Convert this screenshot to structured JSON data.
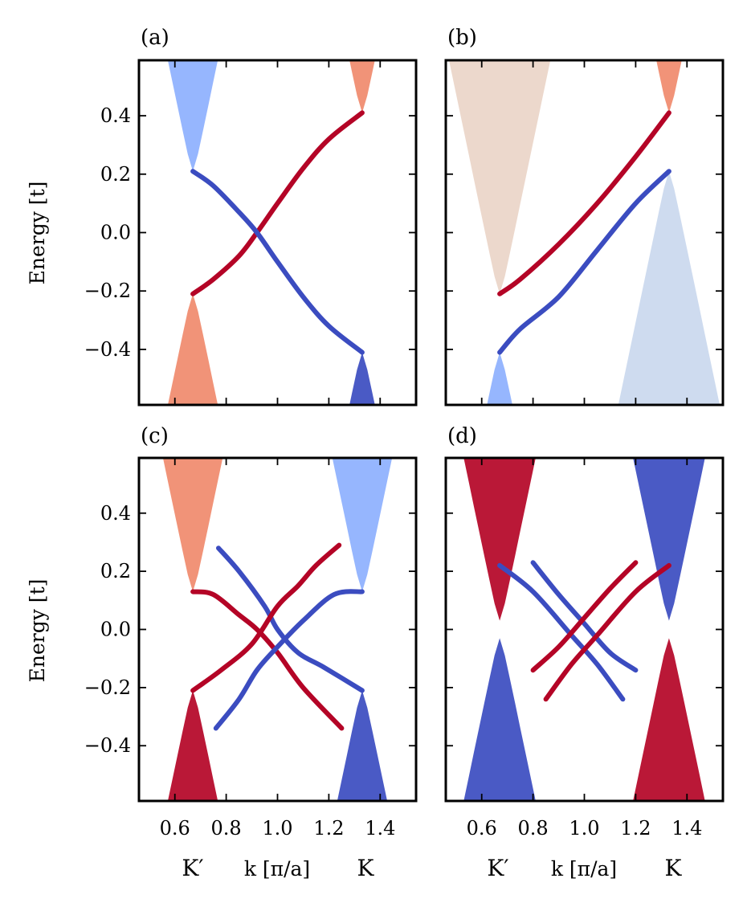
{
  "figure": {
    "ylabel_left": "Energy [t]",
    "xlabel": "k [π/a]",
    "valley_left": "K′",
    "valley_right": "K"
  },
  "colors": {
    "red": "#b40426",
    "blue": "#3b4cc0",
    "light_red": "#f08a6c",
    "light_blue": "#8db0fe",
    "beige": "#ead5c8",
    "pale_blue": "#cad8ee",
    "grey": "#dddddd"
  },
  "chart_data": [
    {
      "panel": "(a)",
      "type": "line",
      "xlim": [
        0.46,
        1.54
      ],
      "ylim": [
        -0.59,
        0.59
      ],
      "xticks": [
        0.6,
        0.8,
        1.0,
        1.2,
        1.4
      ],
      "yticks": [
        -0.4,
        -0.2,
        0.0,
        0.2,
        0.4
      ],
      "ytick_labels": [
        "−0.4",
        "−0.2",
        "0.0",
        "0.2",
        "0.4"
      ],
      "bands": [
        {
          "color": "light_blue",
          "valley_x": 0.67,
          "edge": 0.21,
          "side": "upper"
        },
        {
          "color": "light_red",
          "valley_x": 0.67,
          "edge": -0.21,
          "side": "lower"
        },
        {
          "color": "light_red",
          "valley_x": 1.33,
          "edge": 0.41,
          "side": "upper"
        },
        {
          "color": "blue",
          "valley_x": 1.33,
          "edge": -0.41,
          "side": "lower"
        }
      ],
      "edge_states": [
        {
          "color": "red",
          "x": [
            0.67,
            0.75,
            0.85,
            0.92,
            1.0,
            1.1,
            1.2,
            1.33
          ],
          "y": [
            -0.21,
            -0.16,
            -0.08,
            0.0,
            0.1,
            0.22,
            0.32,
            0.41
          ]
        },
        {
          "color": "blue",
          "x": [
            0.67,
            0.75,
            0.85,
            0.92,
            1.0,
            1.1,
            1.2,
            1.33
          ],
          "y": [
            0.21,
            0.16,
            0.07,
            0.0,
            -0.1,
            -0.22,
            -0.32,
            -0.41
          ]
        }
      ]
    },
    {
      "panel": "(b)",
      "type": "line",
      "xlim": [
        0.46,
        1.54
      ],
      "ylim": [
        -0.59,
        0.59
      ],
      "xticks": [
        0.6,
        0.8,
        1.0,
        1.2,
        1.4
      ],
      "yticks": [
        -0.4,
        -0.2,
        0.0,
        0.2,
        0.4
      ],
      "bands": [
        {
          "color": "beige",
          "valley_x": 0.67,
          "edge": -0.21,
          "side": "upper"
        },
        {
          "color": "light_blue",
          "valley_x": 0.67,
          "edge": -0.41,
          "side": "lower"
        },
        {
          "color": "light_red",
          "valley_x": 1.33,
          "edge": 0.41,
          "side": "upper"
        },
        {
          "color": "pale_blue",
          "valley_x": 1.33,
          "edge": 0.21,
          "side": "lower"
        }
      ],
      "edge_states": [
        {
          "color": "red",
          "x": [
            0.67,
            0.75,
            0.9,
            1.05,
            1.2,
            1.33
          ],
          "y": [
            -0.21,
            -0.16,
            -0.04,
            0.1,
            0.26,
            0.41
          ]
        },
        {
          "color": "blue",
          "x": [
            0.67,
            0.75,
            0.9,
            1.05,
            1.2,
            1.33
          ],
          "y": [
            -0.41,
            -0.33,
            -0.22,
            -0.06,
            0.1,
            0.21
          ]
        }
      ]
    },
    {
      "panel": "(c)",
      "type": "line",
      "xlim": [
        0.46,
        1.54
      ],
      "ylim": [
        -0.59,
        0.59
      ],
      "xticks": [
        0.6,
        0.8,
        1.0,
        1.2,
        1.4
      ],
      "xtick_labels": [
        "0.6",
        "0.8",
        "1.0",
        "1.2",
        "1.4"
      ],
      "yticks": [
        -0.4,
        -0.2,
        0.0,
        0.2,
        0.4
      ],
      "ytick_labels": [
        "−0.4",
        "−0.2",
        "0.0",
        "0.2",
        "0.4"
      ],
      "bands": [
        {
          "color": "light_red",
          "valley_x": 0.67,
          "edge": 0.13,
          "side": "upper"
        },
        {
          "color": "red",
          "valley_x": 0.67,
          "edge": -0.21,
          "side": "lower"
        },
        {
          "color": "light_blue",
          "valley_x": 1.33,
          "edge": 0.13,
          "side": "upper"
        },
        {
          "color": "blue",
          "valley_x": 1.33,
          "edge": -0.21,
          "side": "lower"
        }
      ],
      "edge_states": [
        {
          "color": "red",
          "x": [
            0.67,
            0.75,
            0.85,
            0.92,
            1.0,
            1.1,
            1.25
          ],
          "y": [
            0.13,
            0.12,
            0.05,
            0.0,
            -0.08,
            -0.2,
            -0.34
          ]
        },
        {
          "color": "blue",
          "x": [
            0.77,
            0.85,
            0.95,
            1.0,
            1.08,
            1.18,
            1.33
          ],
          "y": [
            0.28,
            0.2,
            0.08,
            0.0,
            -0.08,
            -0.13,
            -0.21
          ]
        },
        {
          "color": "red",
          "x": [
            0.67,
            0.78,
            0.9,
            1.0,
            1.08,
            1.15,
            1.24
          ],
          "y": [
            -0.21,
            -0.14,
            -0.05,
            0.08,
            0.15,
            0.22,
            0.29
          ]
        },
        {
          "color": "blue",
          "x": [
            0.76,
            0.85,
            0.92,
            1.0,
            1.1,
            1.22,
            1.33
          ],
          "y": [
            -0.34,
            -0.24,
            -0.14,
            -0.06,
            0.03,
            0.12,
            0.13
          ]
        }
      ]
    },
    {
      "panel": "(d)",
      "type": "line",
      "xlim": [
        0.46,
        1.54
      ],
      "ylim": [
        -0.59,
        0.59
      ],
      "xticks": [
        0.6,
        0.8,
        1.0,
        1.2,
        1.4
      ],
      "xtick_labels": [
        "0.6",
        "0.8",
        "1.0",
        "1.2",
        "1.4"
      ],
      "yticks": [
        -0.4,
        -0.2,
        0.0,
        0.2,
        0.4
      ],
      "bands": [
        {
          "color": "red",
          "valley_x": 0.67,
          "edge": 0.03,
          "side": "upper"
        },
        {
          "color": "blue",
          "valley_x": 0.67,
          "edge": -0.03,
          "side": "lower"
        },
        {
          "color": "blue",
          "valley_x": 1.33,
          "edge": 0.03,
          "side": "upper"
        },
        {
          "color": "red",
          "valley_x": 1.33,
          "edge": -0.03,
          "side": "lower"
        }
      ],
      "edge_states": [
        {
          "color": "blue",
          "x": [
            0.67,
            0.8,
            0.95,
            1.05,
            1.15
          ],
          "y": [
            0.22,
            0.13,
            -0.02,
            -0.12,
            -0.24
          ]
        },
        {
          "color": "blue",
          "x": [
            0.8,
            0.9,
            1.0,
            1.1,
            1.2
          ],
          "y": [
            0.23,
            0.12,
            0.02,
            -0.08,
            -0.14
          ]
        },
        {
          "color": "red",
          "x": [
            0.8,
            0.9,
            1.0,
            1.1,
            1.2
          ],
          "y": [
            -0.14,
            -0.06,
            0.04,
            0.14,
            0.23
          ]
        },
        {
          "color": "red",
          "x": [
            0.85,
            0.95,
            1.05,
            1.2,
            1.33
          ],
          "y": [
            -0.24,
            -0.12,
            -0.02,
            0.13,
            0.22
          ]
        }
      ]
    }
  ]
}
